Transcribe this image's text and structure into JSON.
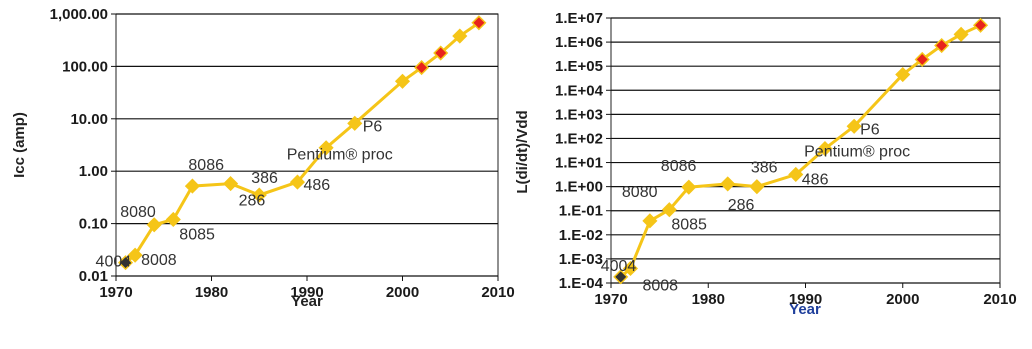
{
  "chart_data": [
    {
      "type": "line",
      "xlabel": "Year",
      "ylabel": "Icc (amp)",
      "xlim": [
        1970,
        2010
      ],
      "ylim": [
        0.01,
        1000
      ],
      "yscale": "log",
      "grid": "horizontal",
      "xticks": [
        "1970",
        "1980",
        "1990",
        "2000",
        "2010"
      ],
      "yticks": [
        {
          "value": 0.01,
          "label": "0.01"
        },
        {
          "value": 0.1,
          "label": "0.10"
        },
        {
          "value": 1,
          "label": "1.00"
        },
        {
          "value": 10,
          "label": "10.00"
        },
        {
          "value": 100,
          "label": "100.00"
        },
        {
          "value": 1000,
          "label": "1,000.00"
        }
      ],
      "series": [
        {
          "color": "#f5c518",
          "x": [
            1971,
            1972,
            1974,
            1976,
            1978,
            1982,
            1985,
            1989,
            1992,
            1995,
            2000,
            2002,
            2004,
            2006,
            2008
          ],
          "y": [
            0.018,
            0.025,
            0.095,
            0.12,
            0.52,
            0.58,
            0.35,
            0.62,
            2.8,
            8.2,
            52,
            95,
            180,
            380,
            680
          ]
        }
      ],
      "markers_dark_years": [
        1971
      ],
      "markers_red_years": [
        2002,
        2004,
        2008
      ],
      "annotations": [
        {
          "text": "4004",
          "x": 1971,
          "y": 0.018
        },
        {
          "text": "8008",
          "x": 1972,
          "y": 0.025
        },
        {
          "text": "8080",
          "x": 1974,
          "y": 0.095
        },
        {
          "text": "8085",
          "x": 1976,
          "y": 0.12
        },
        {
          "text": "8086",
          "x": 1978,
          "y": 0.52
        },
        {
          "text": "286",
          "x": 1982,
          "y": 0.58
        },
        {
          "text": "386",
          "x": 1985,
          "y": 0.35
        },
        {
          "text": "486",
          "x": 1989,
          "y": 0.62
        },
        {
          "text": "P6",
          "x": 1995,
          "y": 8.2
        },
        {
          "text": "Pentium® proc",
          "x": 1995,
          "y": 8.2
        }
      ]
    },
    {
      "type": "line",
      "xlabel": "Year",
      "ylabel": "L(di/dt)/Vdd",
      "xlim": [
        1970,
        2010
      ],
      "ylim": [
        0.0001,
        10000000
      ],
      "yscale": "log",
      "grid": "horizontal",
      "xticks": [
        "1970",
        "1980",
        "1990",
        "2000",
        "2010"
      ],
      "yticks": [
        {
          "value": 0.0001,
          "label": "1.E-04"
        },
        {
          "value": 0.001,
          "label": "1.E-03"
        },
        {
          "value": 0.01,
          "label": "1.E-02"
        },
        {
          "value": 0.1,
          "label": "1.E-01"
        },
        {
          "value": 1,
          "label": "1.E+00"
        },
        {
          "value": 10,
          "label": "1.E+01"
        },
        {
          "value": 100,
          "label": "1.E+02"
        },
        {
          "value": 1000,
          "label": "1.E+03"
        },
        {
          "value": 10000,
          "label": "1.E+04"
        },
        {
          "value": 100000,
          "label": "1.E+05"
        },
        {
          "value": 1000000,
          "label": "1.E+06"
        },
        {
          "value": 10000000,
          "label": "1.E+07"
        }
      ],
      "series": [
        {
          "color": "#f5c518",
          "x": [
            1971,
            1972,
            1974,
            1976,
            1978,
            1982,
            1985,
            1989,
            1992,
            1995,
            2000,
            2002,
            2004,
            2006,
            2008
          ],
          "y": [
            0.00018,
            0.0004,
            0.038,
            0.11,
            0.95,
            1.3,
            1.0,
            3.2,
            38,
            320,
            45000,
            190000,
            720000,
            2100000,
            5000000
          ]
        }
      ],
      "markers_dark_years": [
        1971
      ],
      "markers_red_years": [
        2002,
        2004,
        2008
      ],
      "annotations": [
        {
          "text": "4004",
          "x": 1971,
          "y": 0.00018
        },
        {
          "text": "8008",
          "x": 1972,
          "y": 0.0004
        },
        {
          "text": "8080",
          "x": 1974,
          "y": 0.038
        },
        {
          "text": "8085",
          "x": 1976,
          "y": 0.11
        },
        {
          "text": "8086",
          "x": 1978,
          "y": 0.95
        },
        {
          "text": "286",
          "x": 1982,
          "y": 1.3
        },
        {
          "text": "386",
          "x": 1985,
          "y": 1.0
        },
        {
          "text": "486",
          "x": 1989,
          "y": 3.2
        },
        {
          "text": "P6",
          "x": 1995,
          "y": 320
        },
        {
          "text": "Pentium® proc",
          "x": 1995,
          "y": 320
        }
      ]
    }
  ],
  "colors": {
    "line": "#f5c518",
    "marker_red": "#e8231c",
    "marker_dark": "#333333",
    "grid": "#111111",
    "ylabel_left": "#222222",
    "ylabel_right": "#222222",
    "xlabel_left": "#222222",
    "xlabel_right": "#1f3f9c"
  }
}
